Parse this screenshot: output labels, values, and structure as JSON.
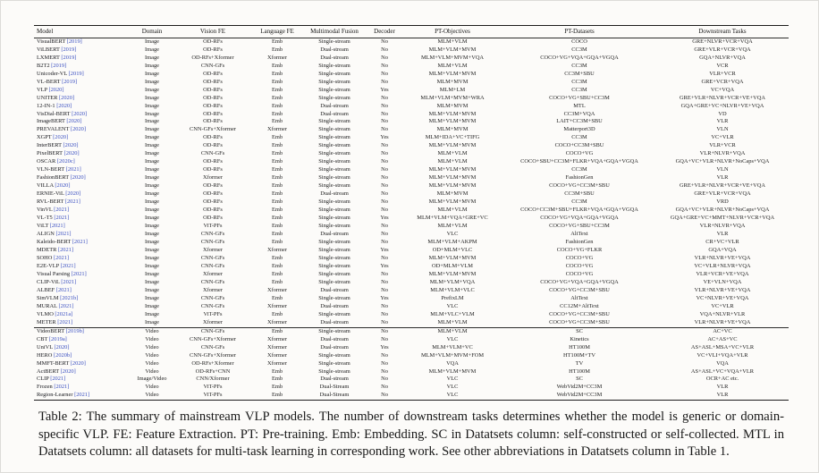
{
  "table": {
    "columns": [
      "Model",
      "Domain",
      "Vision FE",
      "Language FE",
      "Multimodal Fusion",
      "Decoder",
      "PT-Objectives",
      "PT-Datasets",
      "Downstream Tasks"
    ],
    "sections": [
      {
        "rows": [
          {
            "model": "VisualBERT",
            "year": "[2019]",
            "cells": [
              "Image",
              "OD-RFs",
              "Emb",
              "Single-stream",
              "No",
              "MLM+VLM",
              "COCO",
              "GRE+NLVR+VCR+VQA"
            ]
          },
          {
            "model": "ViLBERT",
            "year": "[2019]",
            "cells": [
              "Image",
              "OD-RFs",
              "Emb",
              "Dual-stream",
              "No",
              "MLM+VLM+MVM",
              "CC3M",
              "GRE+VLR+VCR+VQA"
            ]
          },
          {
            "model": "LXMERT",
            "year": "[2019]",
            "cells": [
              "Image",
              "OD-RFs+Xformer",
              "Xformer",
              "Dual-stream",
              "No",
              "MLM+VLM+MVM+VQA",
              "COCO+VG+VQA+GQA+VGQA",
              "GQA+NLVR+VQA"
            ]
          },
          {
            "model": "B2T2",
            "year": "[2019]",
            "cells": [
              "Image",
              "CNN-GFs",
              "Emb",
              "Single-stream",
              "No",
              "MLM+VLM",
              "CC3M",
              "VCR"
            ]
          },
          {
            "model": "Unicoder-VL",
            "year": "[2019]",
            "cells": [
              "Image",
              "OD-RFs",
              "Emb",
              "Single-stream",
              "No",
              "MLM+VLM+MVM",
              "CC3M+SBU",
              "VLR+VCR"
            ]
          },
          {
            "model": "VL-BERT",
            "year": "[2019]",
            "cells": [
              "Image",
              "OD-RFs",
              "Emb",
              "Single-stream",
              "No",
              "MLM+MVM",
              "CC3M",
              "GRE+VCR+VQA"
            ]
          },
          {
            "model": "VLP",
            "year": "[2020]",
            "cells": [
              "Image",
              "OD-RFs",
              "Emb",
              "Single-stream",
              "Yes",
              "MLM+LM",
              "CC3M",
              "VC+VQA"
            ]
          },
          {
            "model": "UNITER",
            "year": "[2020]",
            "cells": [
              "Image",
              "OD-RFs",
              "Emb",
              "Single-stream",
              "No",
              "MLM+VLM+MVM+WRA",
              "COCO+VG+SBU+CC3M",
              "GRE+VLR+NLVR+VCR+VE+VQA"
            ]
          },
          {
            "model": "12-IN-1",
            "year": "[2020]",
            "cells": [
              "Image",
              "OD-RFs",
              "Emb",
              "Dual-stream",
              "No",
              "MLM+MVM",
              "MTL",
              "GQA+GRE+VC+NLVR+VE+VQA"
            ]
          },
          {
            "model": "VisDial-BERT",
            "year": "[2020]",
            "cells": [
              "Image",
              "OD-RFs",
              "Emb",
              "Dual-stream",
              "No",
              "MLM+VLM+MVM",
              "CC3M+VQA",
              "VD"
            ]
          },
          {
            "model": "ImageBERT",
            "year": "[2020]",
            "cells": [
              "Image",
              "OD-RFs",
              "Emb",
              "Single-stream",
              "No",
              "MLM+VLM+MVM",
              "LAIT+CC3M+SBU",
              "VLR"
            ]
          },
          {
            "model": "PREVALENT",
            "year": "[2020]",
            "cells": [
              "Image",
              "CNN-GFs+Xformer",
              "Xformer",
              "Single-stream",
              "No",
              "MLM+MVM",
              "Matterport3D",
              "VLN"
            ]
          },
          {
            "model": "XGPT",
            "year": "[2020]",
            "cells": [
              "Image",
              "OD-RFs",
              "Emb",
              "Single-stream",
              "Yes",
              "MLM+IDA+VC+TIFG",
              "CC3M",
              "VC+VLR"
            ]
          },
          {
            "model": "InterBERT",
            "year": "[2020]",
            "cells": [
              "Image",
              "OD-RFs",
              "Emb",
              "Single-stream",
              "No",
              "MLM+VLM+MVM",
              "COCO+CC3M+SBU",
              "VLR+VCR"
            ]
          },
          {
            "model": "PixelBERT",
            "year": "[2020]",
            "cells": [
              "Image",
              "CNN-GFs",
              "Emb",
              "Single-stream",
              "No",
              "MLM+VLM",
              "COCO+VG",
              "VLR+NLVR+VQA"
            ]
          },
          {
            "model": "OSCAR",
            "year": "[2020c]",
            "cells": [
              "Image",
              "OD-RFs",
              "Emb",
              "Single-stream",
              "No",
              "MLM+VLM",
              "COCO+SBU+CC3M+FLKR+VQA+GQA+VGQA",
              "GQA+VC+VLR+NLVR+NoCaps+VQA"
            ]
          },
          {
            "model": "VLN-BERT",
            "year": "[2021]",
            "cells": [
              "Image",
              "OD-RFs",
              "Emb",
              "Single-stream",
              "No",
              "MLM+VLM+MVM",
              "CC3M",
              "VLN"
            ]
          },
          {
            "model": "FashionBERT",
            "year": "[2020]",
            "cells": [
              "Image",
              "Xformer",
              "Emb",
              "Single-stream",
              "No",
              "MLM+VLM+MVM",
              "FashionGen",
              "VLR"
            ]
          },
          {
            "model": "VILLA",
            "year": "[2020]",
            "cells": [
              "Image",
              "OD-RFs",
              "Emb",
              "Single-stream",
              "No",
              "MLM+VLM+MVM",
              "COCO+VG+CC3M+SBU",
              "GRE+VLR+NLVR+VCR+VE+VQA"
            ]
          },
          {
            "model": "ERNIE-ViL",
            "year": "[2020]",
            "cells": [
              "Image",
              "OD-RFs",
              "Emb",
              "Dual-stream",
              "No",
              "MLM+MVM",
              "CC3M+SBU",
              "GRE+VLR+VCR+VQA"
            ]
          },
          {
            "model": "RVL-BERT",
            "year": "[2021]",
            "cells": [
              "Image",
              "OD-RFs",
              "Emb",
              "Single-stream",
              "No",
              "MLM+VLM+MVM",
              "CC3M",
              "VRD"
            ]
          },
          {
            "model": "VinVL",
            "year": "[2021]",
            "cells": [
              "Image",
              "OD-RFs",
              "Emb",
              "Single-stream",
              "No",
              "MLM+VLM",
              "COCO+CC3M+SBU+FLKR+VQA+GQA+VGQA",
              "GQA+VC+VLR+NLVR+NoCaps+VQA"
            ]
          },
          {
            "model": "VL-T5",
            "year": "[2021]",
            "cells": [
              "Image",
              "OD-RFs",
              "Emb",
              "Single-stream",
              "Yes",
              "MLM+VLM+VQA+GRE+VC",
              "COCO+VG+VQA+GQA+VGQA",
              "GQA+GRE+VC+MMT+NLVR+VCR+VQA"
            ]
          },
          {
            "model": "ViLT",
            "year": "[2021]",
            "cells": [
              "Image",
              "ViT-PFs",
              "Emb",
              "Single-stream",
              "No",
              "MLM+VLM",
              "COCO+VG+SBU+CC3M",
              "VLR+NLVR+VQA"
            ]
          },
          {
            "model": "ALIGN",
            "year": "[2021]",
            "cells": [
              "Image",
              "CNN-GFs",
              "Emb",
              "Dual-stream",
              "No",
              "VLC",
              "AltText",
              "VLR"
            ]
          },
          {
            "model": "Kaleido-BERT",
            "year": "[2021]",
            "cells": [
              "Image",
              "CNN-GFs",
              "Emb",
              "Single-stream",
              "No",
              "MLM+VLM+AKPM",
              "FashionGen",
              "CR+VC+VLR"
            ]
          },
          {
            "model": "MDETR",
            "year": "[2021]",
            "cells": [
              "Image",
              "Xformer",
              "Xformer",
              "Single-stream",
              "Yes",
              "OD+MLM+VLC",
              "COCO+VG+FLKR",
              "GQA+VQA"
            ]
          },
          {
            "model": "SOHO",
            "year": "[2021]",
            "cells": [
              "Image",
              "CNN-GFs",
              "Emb",
              "Single-stream",
              "No",
              "MLM+VLM+MVM",
              "COCO+VG",
              "VLR+NLVR+VE+VQA"
            ]
          },
          {
            "model": "E2E-VLP",
            "year": "[2021]",
            "cells": [
              "Image",
              "CNN-GFs",
              "Emb",
              "Single-stream",
              "Yes",
              "OD+MLM+VLM",
              "COCO+VG",
              "VC+VLR+NLVR+VQA"
            ]
          },
          {
            "model": "Visual Parsing",
            "year": "[2021]",
            "cells": [
              "Image",
              "Xformer",
              "Emb",
              "Single-stream",
              "No",
              "MLM+VLM+MVM",
              "COCO+VG",
              "VLR+VCR+VE+VQA"
            ]
          },
          {
            "model": "CLIP-ViL",
            "year": "[2021]",
            "cells": [
              "Image",
              "CNN-GFs",
              "Emb",
              "Single-stream",
              "No",
              "MLM+VLM+VQA",
              "COCO+VG+VQA+GQA+VGQA",
              "VE+VLN+VQA"
            ]
          },
          {
            "model": "ALBEF",
            "year": "[2021]",
            "cells": [
              "Image",
              "Xformer",
              "Xformer",
              "Dual-stream",
              "No",
              "MLM+VLM+VLC",
              "COCO+VG+CC3M+SBU",
              "VLR+NLVR+VE+VQA"
            ]
          },
          {
            "model": "SimVLM",
            "year": "[2021b]",
            "cells": [
              "Image",
              "CNN-GFs",
              "Emb",
              "Single-stream",
              "Yes",
              "PrefixLM",
              "AltText",
              "VC+NLVR+VE+VQA"
            ]
          },
          {
            "model": "MURAL",
            "year": "[2021]",
            "cells": [
              "Image",
              "CNN-GFs",
              "Xformer",
              "Dual-stream",
              "No",
              "VLC",
              "CC12M+AltText",
              "VC+VLR"
            ]
          },
          {
            "model": "VLMO",
            "year": "[2021a]",
            "cells": [
              "Image",
              "ViT-PFs",
              "Emb",
              "Single-stream",
              "No",
              "MLM+VLC+VLM",
              "COCO+VG+CC3M+SBU",
              "VQA+NLVR+VLR"
            ]
          },
          {
            "model": "METER",
            "year": "[2021]",
            "cells": [
              "Image",
              "Xformer",
              "Xformer",
              "Dual-stream",
              "No",
              "MLM+VLM",
              "COCO+VG+CC3M+SBU",
              "VLR+NLVR+VE+VQA"
            ]
          }
        ]
      },
      {
        "rows": [
          {
            "model": "VideoBERT",
            "year": "[2019b]",
            "cells": [
              "Video",
              "CNN-GFs",
              "Emb",
              "Single-stream",
              "No",
              "MLM+VLM",
              "SC",
              "AC+VC"
            ]
          },
          {
            "model": "CBT",
            "year": "[2019a]",
            "cells": [
              "Video",
              "CNN-GFs+Xformer",
              "Xformer",
              "Dual-stream",
              "No",
              "VLC",
              "Kinetics",
              "AC+AS+VC"
            ]
          },
          {
            "model": "UniVL",
            "year": "[2020]",
            "cells": [
              "Video",
              "CNN-GFs",
              "Xformer",
              "Dual-stream",
              "Yes",
              "MLM+VLM+VC",
              "HT100M",
              "AS+ASL+MSA+VC+VLR"
            ]
          },
          {
            "model": "HERO",
            "year": "[2020b]",
            "cells": [
              "Video",
              "CNN-GFs+Xformer",
              "Xformer",
              "Single-stream",
              "No",
              "MLM+VLM+MVM+FOM",
              "HT100M+TV",
              "VC+VLI+VQA+VLR"
            ]
          },
          {
            "model": "MMFT-BERT",
            "year": "[2020]",
            "cells": [
              "Video",
              "OD-RFs+Xformer",
              "Xformer",
              "Single-stream",
              "No",
              "VQA",
              "TV",
              "VQA"
            ]
          },
          {
            "model": "ActBERT",
            "year": "[2020]",
            "cells": [
              "Video",
              "OD-RFs+CNN",
              "Emb",
              "Single-stream",
              "No",
              "MLM+VLM+MVM",
              "HT100M",
              "AS+ASL+VC+VQA+VLR"
            ]
          },
          {
            "model": "CLIP",
            "year": "[2021]",
            "cells": [
              "Image/Video",
              "CNN/Xformer",
              "Emb",
              "Dual-stream",
              "No",
              "VLC",
              "SC",
              "OCR+AC etc."
            ]
          },
          {
            "model": "Frozen",
            "year": "[2021]",
            "cells": [
              "Video",
              "ViT-PFs",
              "Emb",
              "Dual-Stream",
              "No",
              "VLC",
              "WebVid2M+CC3M",
              "VLR"
            ]
          },
          {
            "model": "Region-Learner",
            "year": "[2021]",
            "cells": [
              "Video",
              "ViT-PFs",
              "Emb",
              "Dual-Stream",
              "No",
              "VLC",
              "WebVid2M+CC3M",
              "VLR"
            ]
          }
        ]
      }
    ]
  },
  "caption": {
    "text": "Table 2: The summary of mainstream VLP models. The number of downstream tasks determines whether the model is generic or domain-specific VLP. FE: Feature Extraction. PT: Pre-training. Emb: Embedding. SC in Datatsets column: self-constructed or self-collected. MTL in Datatsets column: all datasets for multi-task learning in corresponding work. See other abbreviations in Datatsets column in Table 1."
  }
}
